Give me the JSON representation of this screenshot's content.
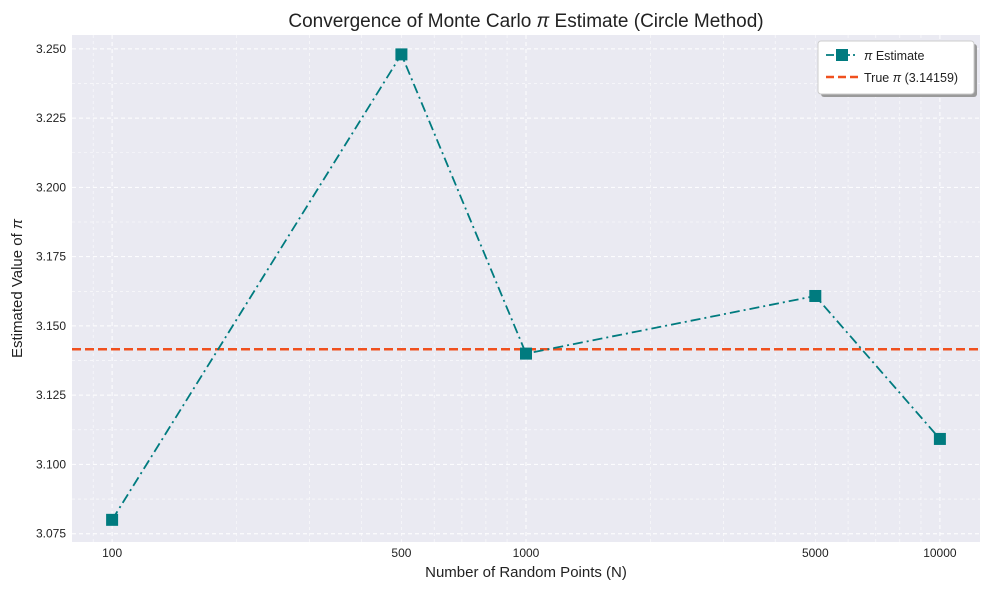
{
  "chart_data": {
    "type": "line",
    "title_prefix": "Convergence of Monte Carlo ",
    "title_symbol": "π",
    "title_suffix": " Estimate (Circle Method)",
    "xlabel": "Number of Random Points (N)",
    "ylabel_prefix": "Estimated Value of ",
    "ylabel_symbol": "π",
    "x_scale": "log",
    "xlim": [
      80,
      12500
    ],
    "ylim": [
      3.072,
      3.255
    ],
    "x_ticks": [
      100,
      500,
      1000,
      5000,
      10000
    ],
    "x_tick_labels": [
      "100",
      "500",
      "1000",
      "5000",
      "10000"
    ],
    "y_ticks": [
      3.075,
      3.1,
      3.125,
      3.15,
      3.175,
      3.2,
      3.225,
      3.25
    ],
    "y_tick_labels": [
      "3.075",
      "3.100",
      "3.125",
      "3.150",
      "3.175",
      "3.200",
      "3.225",
      "3.250"
    ],
    "grid": true,
    "legend_position": "top-right",
    "series": [
      {
        "name_symbol": "π",
        "name_suffix": " Estimate",
        "x": [
          100,
          500,
          1000,
          5000,
          10000
        ],
        "y": [
          3.08,
          3.248,
          3.14,
          3.1608,
          3.1092
        ],
        "color": "#007b7f",
        "line_style": "dash-dot",
        "marker": "square"
      }
    ],
    "reference_line": {
      "name_prefix": "True ",
      "name_symbol": "π",
      "name_suffix": " (3.14159)",
      "y": 3.14159,
      "color": "#f0501e",
      "line_style": "dashed"
    },
    "colors": {
      "plot_background": "#eaeaf2",
      "grid": "#ffffff"
    }
  }
}
